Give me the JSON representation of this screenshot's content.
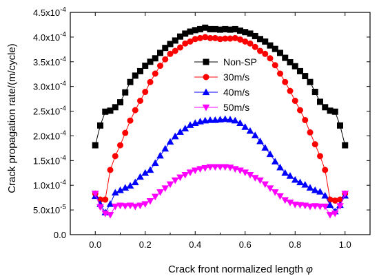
{
  "chart_data": {
    "type": "line",
    "title": "",
    "xlabel": "Crack front normalized length ",
    "xlabel_symbol": "φ",
    "ylabel": "Crack propagation rate/(m/cycle)",
    "xlim": [
      -0.1,
      1.1
    ],
    "ylim": [
      0.0,
      0.00045
    ],
    "x_ticks": [
      0.0,
      0.2,
      0.4,
      0.6,
      0.8,
      1.0
    ],
    "x_tick_labels": [
      "0.0",
      "0.2",
      "0.4",
      "0.6",
      "0.8",
      "1.0"
    ],
    "y_ticks": [
      0.0,
      5e-05,
      0.0001,
      0.00015,
      0.0002,
      0.00025,
      0.0003,
      0.00035,
      0.0004,
      0.00045
    ],
    "y_tick_labels": [
      {
        "mantissa": "0.0",
        "exp": ""
      },
      {
        "mantissa": "5.0x10",
        "exp": "-5"
      },
      {
        "mantissa": "1.0x10",
        "exp": "-4"
      },
      {
        "mantissa": "1.5x10",
        "exp": "-4"
      },
      {
        "mantissa": "2.0x10",
        "exp": "-4"
      },
      {
        "mantissa": "2.5x10",
        "exp": "-4"
      },
      {
        "mantissa": "3.0x10",
        "exp": "-4"
      },
      {
        "mantissa": "3.5x10",
        "exp": "-4"
      },
      {
        "mantissa": "4.0x10",
        "exp": "-4"
      },
      {
        "mantissa": "4.5x10",
        "exp": "-4"
      }
    ],
    "grid": false,
    "legend_position": "center",
    "series": [
      {
        "name": "Non-SP",
        "color": "#000000",
        "marker": "square",
        "points": [
          [
            0.0,
            0.000181
          ],
          [
            0.02,
            0.000221
          ],
          [
            0.04,
            0.000249
          ],
          [
            0.06,
            0.000251
          ],
          [
            0.08,
            0.000258
          ],
          [
            0.1,
            0.000268
          ],
          [
            0.12,
            0.000288
          ],
          [
            0.14,
            0.000309
          ],
          [
            0.16,
            0.000322
          ],
          [
            0.18,
            0.000331
          ],
          [
            0.2,
            0.000342
          ],
          [
            0.22,
            0.00035
          ],
          [
            0.24,
            0.000357
          ],
          [
            0.26,
            0.000368
          ],
          [
            0.28,
            0.000378
          ],
          [
            0.3,
            0.000386
          ],
          [
            0.32,
            0.000393
          ],
          [
            0.34,
            0.000401
          ],
          [
            0.36,
            0.000407
          ],
          [
            0.38,
            0.000411
          ],
          [
            0.4,
            0.000414
          ],
          [
            0.42,
            0.000416
          ],
          [
            0.44,
            0.000419
          ],
          [
            0.46,
            0.000416
          ],
          [
            0.48,
            0.000416
          ],
          [
            0.5,
            0.000415
          ],
          [
            0.52,
            0.000416
          ],
          [
            0.54,
            0.000415
          ],
          [
            0.56,
            0.000416
          ],
          [
            0.58,
            0.000413
          ],
          [
            0.6,
            0.00041
          ],
          [
            0.62,
            0.000407
          ],
          [
            0.64,
            0.000402
          ],
          [
            0.66,
            0.000396
          ],
          [
            0.68,
            0.000391
          ],
          [
            0.7,
            0.000383
          ],
          [
            0.72,
            0.000376
          ],
          [
            0.74,
            0.000368
          ],
          [
            0.76,
            0.000358
          ],
          [
            0.78,
            0.000349
          ],
          [
            0.8,
            0.000341
          ],
          [
            0.82,
            0.000331
          ],
          [
            0.84,
            0.000321
          ],
          [
            0.86,
            0.000309
          ],
          [
            0.88,
            0.000289
          ],
          [
            0.9,
            0.000269
          ],
          [
            0.92,
            0.000258
          ],
          [
            0.94,
            0.000251
          ],
          [
            0.96,
            0.000249
          ],
          [
            0.98,
            0.000221
          ],
          [
            1.0,
            0.000181
          ]
        ]
      },
      {
        "name": "30m/s",
        "color": "#ff0000",
        "marker": "circle",
        "points": [
          [
            0.0,
            8.3e-05
          ],
          [
            0.02,
            7.1e-05
          ],
          [
            0.04,
            7.1e-05
          ],
          [
            0.06,
            0.000131
          ],
          [
            0.08,
            0.000159
          ],
          [
            0.1,
            0.000181
          ],
          [
            0.12,
            0.000206
          ],
          [
            0.14,
            0.000231
          ],
          [
            0.16,
            0.000252
          ],
          [
            0.18,
            0.000271
          ],
          [
            0.2,
            0.000289
          ],
          [
            0.22,
            0.000309
          ],
          [
            0.24,
            0.000326
          ],
          [
            0.26,
            0.000342
          ],
          [
            0.28,
            0.000355
          ],
          [
            0.3,
            0.000366
          ],
          [
            0.32,
            0.000372
          ],
          [
            0.34,
            0.000379
          ],
          [
            0.36,
            0.000387
          ],
          [
            0.38,
            0.000391
          ],
          [
            0.4,
            0.000396
          ],
          [
            0.42,
            0.000398
          ],
          [
            0.44,
            0.0004
          ],
          [
            0.46,
            0.000398
          ],
          [
            0.48,
            0.000398
          ],
          [
            0.5,
            0.000396
          ],
          [
            0.52,
            0.000397
          ],
          [
            0.54,
            0.000397
          ],
          [
            0.56,
            0.000398
          ],
          [
            0.58,
            0.000395
          ],
          [
            0.6,
            0.000391
          ],
          [
            0.62,
            0.000387
          ],
          [
            0.64,
            0.00038
          ],
          [
            0.66,
            0.000372
          ],
          [
            0.68,
            0.000366
          ],
          [
            0.7,
            0.000357
          ],
          [
            0.72,
            0.000343
          ],
          [
            0.74,
            0.000326
          ],
          [
            0.76,
            0.000309
          ],
          [
            0.78,
            0.000291
          ],
          [
            0.8,
            0.000271
          ],
          [
            0.82,
            0.000252
          ],
          [
            0.84,
            0.000232
          ],
          [
            0.86,
            0.000207
          ],
          [
            0.88,
            0.000183
          ],
          [
            0.9,
            0.000159
          ],
          [
            0.92,
            0.000131
          ],
          [
            0.94,
            7.1e-05
          ],
          [
            0.96,
            6.9e-05
          ],
          [
            0.98,
            7.1e-05
          ],
          [
            1.0,
            8.3e-05
          ]
        ]
      },
      {
        "name": "40m/s",
        "color": "#0000ff",
        "marker": "triangle-up",
        "points": [
          [
            0.0,
            7.8e-05
          ],
          [
            0.02,
            6.2e-05
          ],
          [
            0.04,
            4.5e-05
          ],
          [
            0.06,
            6.2e-05
          ],
          [
            0.08,
            8.5e-05
          ],
          [
            0.1,
            9e-05
          ],
          [
            0.12,
            9.5e-05
          ],
          [
            0.14,
            9.9e-05
          ],
          [
            0.16,
            0.000106
          ],
          [
            0.18,
            0.000117
          ],
          [
            0.2,
            0.000125
          ],
          [
            0.22,
            0.000131
          ],
          [
            0.24,
            0.000145
          ],
          [
            0.26,
            0.00016
          ],
          [
            0.28,
            0.000174
          ],
          [
            0.3,
            0.000188
          ],
          [
            0.32,
            0.000199
          ],
          [
            0.34,
            0.000208
          ],
          [
            0.36,
            0.000215
          ],
          [
            0.38,
            0.000222
          ],
          [
            0.4,
            0.000226
          ],
          [
            0.42,
            0.000229
          ],
          [
            0.44,
            0.000231
          ],
          [
            0.46,
            0.000232
          ],
          [
            0.48,
            0.000232
          ],
          [
            0.5,
            0.000233
          ],
          [
            0.52,
            0.000234
          ],
          [
            0.54,
            0.000233
          ],
          [
            0.56,
            0.000231
          ],
          [
            0.58,
            0.000226
          ],
          [
            0.6,
            0.000218
          ],
          [
            0.62,
            0.00021
          ],
          [
            0.64,
            0.000201
          ],
          [
            0.66,
            0.000189
          ],
          [
            0.68,
            0.000176
          ],
          [
            0.7,
            0.000163
          ],
          [
            0.72,
            0.000148
          ],
          [
            0.74,
            0.000136
          ],
          [
            0.76,
            0.000125
          ],
          [
            0.78,
            0.000119
          ],
          [
            0.8,
            0.000111
          ],
          [
            0.82,
            0.000106
          ],
          [
            0.84,
            0.000101
          ],
          [
            0.86,
            9.5e-05
          ],
          [
            0.88,
            9e-05
          ],
          [
            0.9,
            8.7e-05
          ],
          [
            0.92,
            7.9e-05
          ],
          [
            0.94,
            6e-05
          ],
          [
            0.96,
            4.7e-05
          ],
          [
            0.98,
            6e-05
          ],
          [
            1.0,
            7.9e-05
          ]
        ]
      },
      {
        "name": "50m/s",
        "color": "#ff00ff",
        "marker": "triangle-down",
        "points": [
          [
            0.0,
            8.3e-05
          ],
          [
            0.02,
            5.6e-05
          ],
          [
            0.04,
            4.3e-05
          ],
          [
            0.06,
            4e-05
          ],
          [
            0.08,
            5.7e-05
          ],
          [
            0.1,
            5.9e-05
          ],
          [
            0.12,
            5.8e-05
          ],
          [
            0.14,
            5.9e-05
          ],
          [
            0.16,
            5.7e-05
          ],
          [
            0.18,
            5.9e-05
          ],
          [
            0.2,
            6.2e-05
          ],
          [
            0.22,
            6.8e-05
          ],
          [
            0.24,
            7.7e-05
          ],
          [
            0.26,
            8.6e-05
          ],
          [
            0.28,
            9.4e-05
          ],
          [
            0.3,
            0.000102
          ],
          [
            0.32,
            0.00011
          ],
          [
            0.34,
            0.000116
          ],
          [
            0.36,
            0.000121
          ],
          [
            0.38,
            0.000126
          ],
          [
            0.4,
            0.00013
          ],
          [
            0.42,
            0.000133
          ],
          [
            0.44,
            0.000135
          ],
          [
            0.46,
            0.000137
          ],
          [
            0.48,
            0.000137
          ],
          [
            0.5,
            0.000137
          ],
          [
            0.52,
            0.000137
          ],
          [
            0.54,
            0.000136
          ],
          [
            0.56,
            0.000133
          ],
          [
            0.58,
            0.00013
          ],
          [
            0.6,
            0.000126
          ],
          [
            0.62,
            0.000121
          ],
          [
            0.64,
            0.000115
          ],
          [
            0.66,
            0.00011
          ],
          [
            0.68,
            0.000102
          ],
          [
            0.7,
            9.4e-05
          ],
          [
            0.72,
            8.6e-05
          ],
          [
            0.74,
            7.8e-05
          ],
          [
            0.76,
            7e-05
          ],
          [
            0.78,
            6.5e-05
          ],
          [
            0.8,
            6.1e-05
          ],
          [
            0.82,
            6e-05
          ],
          [
            0.84,
            5.9e-05
          ],
          [
            0.86,
            5.7e-05
          ],
          [
            0.88,
            5.8e-05
          ],
          [
            0.9,
            5.7e-05
          ],
          [
            0.92,
            5.7e-05
          ],
          [
            0.94,
            4e-05
          ],
          [
            0.96,
            4.3e-05
          ],
          [
            0.98,
            5.8e-05
          ],
          [
            1.0,
            8.3e-05
          ]
        ]
      }
    ]
  }
}
